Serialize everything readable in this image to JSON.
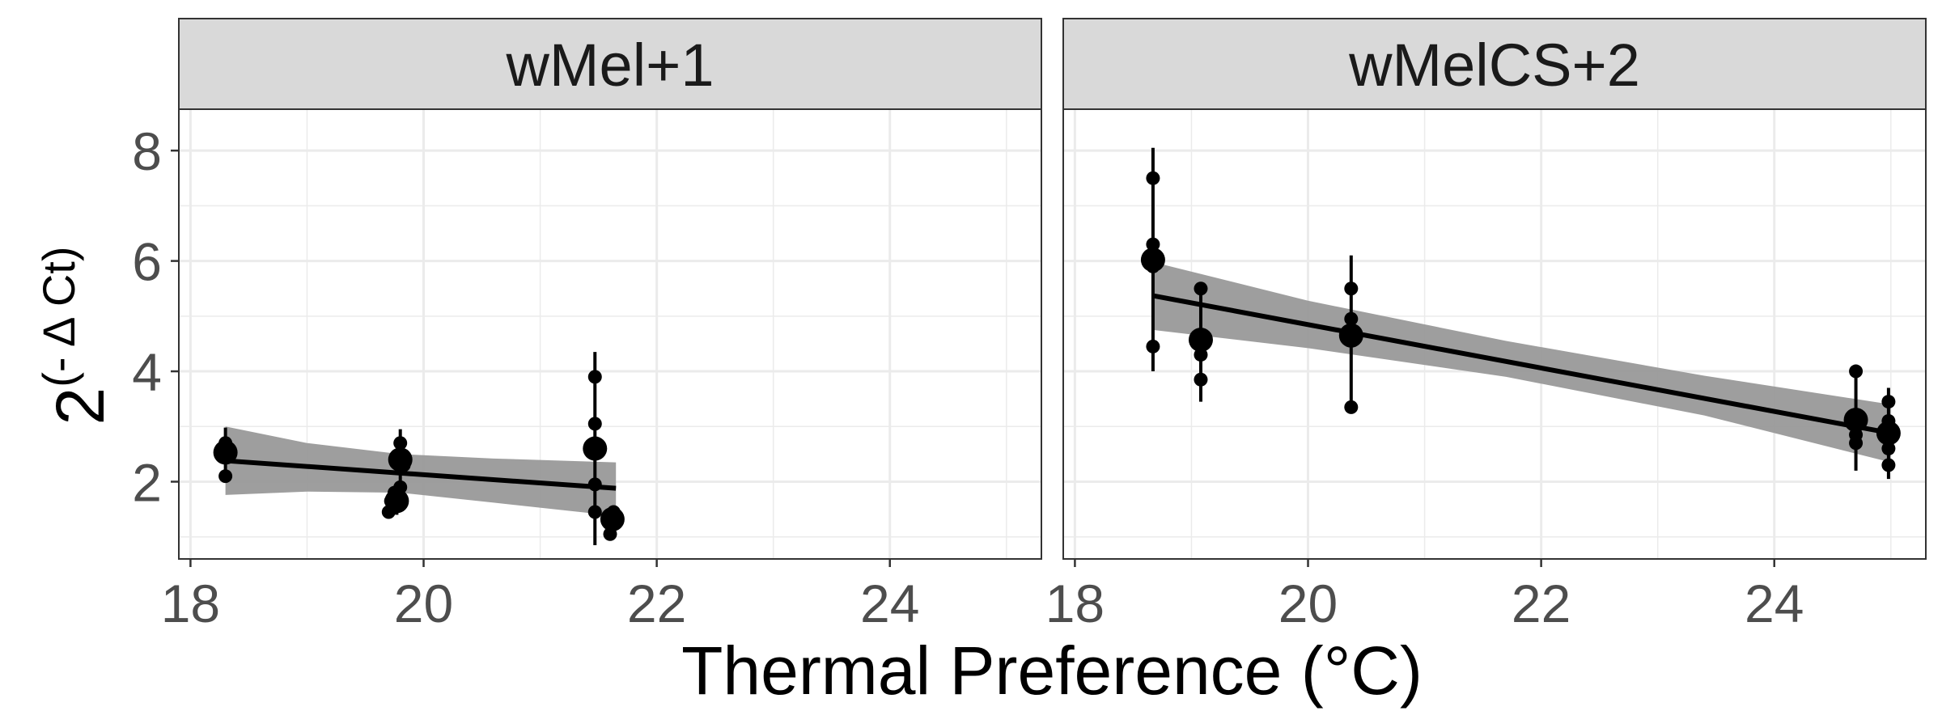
{
  "chart_data": {
    "type": "scatter",
    "xlabel": "Thermal Preference (°C)",
    "ylabel": {
      "base": "2",
      "exponent": "(- Δ Ct)"
    },
    "xlim": [
      17.9,
      25.3
    ],
    "ylim": [
      0.6,
      8.75
    ],
    "x_ticks": [
      "18",
      "20",
      "22",
      "24"
    ],
    "y_ticks": [
      "2",
      "4",
      "6",
      "8"
    ],
    "x_tick_values": [
      18,
      20,
      22,
      24
    ],
    "y_tick_values": [
      2,
      4,
      6,
      8
    ],
    "x_minor": [
      19,
      21,
      23,
      25
    ],
    "y_minor": [
      1,
      3,
      5,
      7
    ],
    "grid": true,
    "colors": {
      "points": "#000000",
      "ribbon": "#999999",
      "strip_fill": "#d9d9d9",
      "grid": "#ebebeb",
      "panel_border": "#333333"
    },
    "panels": [
      {
        "label": "wMel+1",
        "points": [
          {
            "x": 18.3,
            "y": 2.7
          },
          {
            "x": 18.3,
            "y": 2.5
          },
          {
            "x": 18.3,
            "y": 2.1
          },
          {
            "x": 18.27,
            "y": 2.6
          },
          {
            "x": 19.7,
            "y": 1.45
          },
          {
            "x": 19.72,
            "y": 1.65
          },
          {
            "x": 19.75,
            "y": 1.8
          },
          {
            "x": 19.8,
            "y": 1.9
          },
          {
            "x": 19.8,
            "y": 2.5
          },
          {
            "x": 19.8,
            "y": 2.7
          },
          {
            "x": 19.83,
            "y": 2.3
          },
          {
            "x": 21.47,
            "y": 3.9
          },
          {
            "x": 21.47,
            "y": 3.05
          },
          {
            "x": 21.47,
            "y": 1.95
          },
          {
            "x": 21.47,
            "y": 1.45
          },
          {
            "x": 21.6,
            "y": 1.05
          },
          {
            "x": 21.62,
            "y": 1.35
          },
          {
            "x": 21.63,
            "y": 1.45
          }
        ],
        "means": [
          {
            "x": 18.3,
            "y": 2.53,
            "ymin": 2.1,
            "ymax": 2.98
          },
          {
            "x": 19.77,
            "y": 1.65,
            "ymin": 1.4,
            "ymax": 1.95
          },
          {
            "x": 19.8,
            "y": 2.4,
            "ymin": 2.0,
            "ymax": 2.95
          },
          {
            "x": 21.47,
            "y": 2.6,
            "ymin": 0.85,
            "ymax": 4.35
          },
          {
            "x": 21.62,
            "y": 1.32,
            "ymin": 1.1,
            "ymax": 1.5
          }
        ],
        "fit": {
          "x": [
            18.3,
            21.65
          ],
          "y": [
            2.38,
            1.88
          ]
        },
        "ribbon": {
          "x": [
            18.3,
            19.0,
            19.8,
            20.6,
            21.65
          ],
          "upper": [
            3.0,
            2.7,
            2.5,
            2.42,
            2.35
          ],
          "lower": [
            1.76,
            1.82,
            1.8,
            1.62,
            1.38
          ]
        }
      },
      {
        "label": "wMelCS+2",
        "points": [
          {
            "x": 18.67,
            "y": 7.5
          },
          {
            "x": 18.67,
            "y": 6.3
          },
          {
            "x": 18.67,
            "y": 5.9
          },
          {
            "x": 18.67,
            "y": 4.45
          },
          {
            "x": 19.08,
            "y": 5.5
          },
          {
            "x": 19.08,
            "y": 4.3
          },
          {
            "x": 19.08,
            "y": 3.85
          },
          {
            "x": 20.37,
            "y": 5.5
          },
          {
            "x": 20.37,
            "y": 4.95
          },
          {
            "x": 20.37,
            "y": 4.75
          },
          {
            "x": 20.37,
            "y": 3.35
          },
          {
            "x": 24.7,
            "y": 4.0
          },
          {
            "x": 24.7,
            "y": 3.1
          },
          {
            "x": 24.7,
            "y": 2.85
          },
          {
            "x": 24.7,
            "y": 2.7
          },
          {
            "x": 24.98,
            "y": 3.45
          },
          {
            "x": 24.98,
            "y": 3.1
          },
          {
            "x": 24.98,
            "y": 2.85
          },
          {
            "x": 24.98,
            "y": 2.6
          },
          {
            "x": 24.98,
            "y": 2.3
          }
        ],
        "means": [
          {
            "x": 18.67,
            "y": 6.02,
            "ymin": 4.0,
            "ymax": 8.05
          },
          {
            "x": 19.08,
            "y": 4.57,
            "ymin": 3.45,
            "ymax": 5.6
          },
          {
            "x": 20.37,
            "y": 4.65,
            "ymin": 3.3,
            "ymax": 6.1
          },
          {
            "x": 24.7,
            "y": 3.12,
            "ymin": 2.2,
            "ymax": 4.0
          },
          {
            "x": 24.98,
            "y": 2.88,
            "ymin": 2.05,
            "ymax": 3.7
          }
        ],
        "fit": {
          "x": [
            18.67,
            25.0
          ],
          "y": [
            5.37,
            2.88
          ]
        },
        "ribbon": {
          "x": [
            18.67,
            20.0,
            21.7,
            23.4,
            25.0
          ],
          "upper": [
            5.98,
            5.28,
            4.55,
            3.92,
            3.4
          ],
          "lower": [
            4.75,
            4.42,
            3.9,
            3.2,
            2.35
          ]
        }
      }
    ]
  }
}
